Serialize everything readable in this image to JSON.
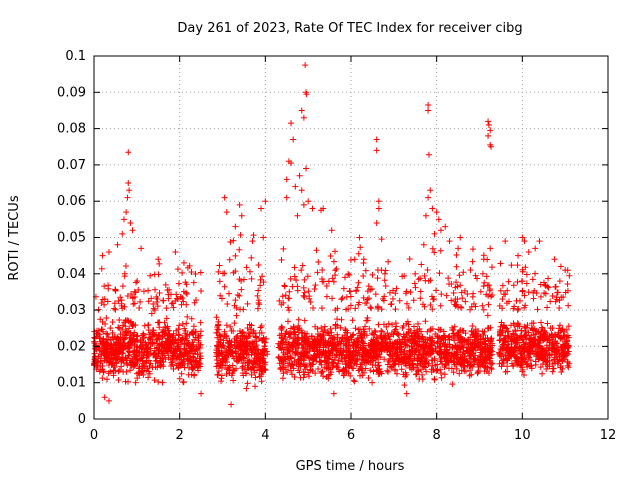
{
  "chart_data": {
    "type": "scatter",
    "title": "Day 261 of 2023, Rate Of TEC Index for receiver cibg",
    "xlabel": "GPS time / hours",
    "ylabel": "ROTI / TECUs",
    "xlim": [
      0,
      12
    ],
    "ylim": [
      0,
      0.1
    ],
    "x_ticks": [
      0,
      2,
      4,
      6,
      8,
      10,
      12
    ],
    "y_ticks": [
      0,
      0.01,
      0.02,
      0.03,
      0.04,
      0.05,
      0.06,
      0.07,
      0.08,
      0.09,
      0.1
    ],
    "x_tick_labels": [
      "0",
      "2",
      "4",
      "6",
      "8",
      "10",
      "12"
    ],
    "y_tick_labels": [
      "0",
      "0.01",
      "0.02",
      "0.03",
      "0.04",
      "0.05",
      "0.06",
      "0.07",
      "0.08",
      "0.09",
      "0.1"
    ],
    "grid": true,
    "marker": "+",
    "series": [
      {
        "name": "ROTI",
        "color": "#ff0000",
        "segments": [
          {
            "x_start": 0.0,
            "x_end": 2.5,
            "typical_min": 0.008,
            "typical_max": 0.03,
            "max_low": 0.035,
            "max_high": 0.046
          },
          {
            "x_start": 2.85,
            "x_end": 4.05,
            "typical_min": 0.007,
            "typical_max": 0.03,
            "max_low": 0.04,
            "max_high": 0.055
          },
          {
            "x_start": 4.3,
            "x_end": 9.3,
            "typical_min": 0.008,
            "typical_max": 0.03,
            "max_low": 0.035,
            "max_high": 0.05
          },
          {
            "x_start": 9.45,
            "x_end": 11.1,
            "typical_min": 0.01,
            "typical_max": 0.03,
            "max_low": 0.035,
            "max_high": 0.045
          }
        ],
        "outliers": [
          {
            "x": 0.8,
            "y": 0.0735
          },
          {
            "x": 0.8,
            "y": 0.065
          },
          {
            "x": 0.82,
            "y": 0.063
          },
          {
            "x": 0.78,
            "y": 0.061
          },
          {
            "x": 0.75,
            "y": 0.057
          },
          {
            "x": 0.7,
            "y": 0.055
          },
          {
            "x": 0.85,
            "y": 0.054
          },
          {
            "x": 0.9,
            "y": 0.052
          },
          {
            "x": 0.66,
            "y": 0.051
          },
          {
            "x": 0.55,
            "y": 0.048
          },
          {
            "x": 1.1,
            "y": 0.047
          },
          {
            "x": 0.35,
            "y": 0.046
          },
          {
            "x": 1.9,
            "y": 0.046
          },
          {
            "x": 2.1,
            "y": 0.043
          },
          {
            "x": 0.2,
            "y": 0.045
          },
          {
            "x": 1.5,
            "y": 0.044
          },
          {
            "x": 3.05,
            "y": 0.061
          },
          {
            "x": 3.4,
            "y": 0.059
          },
          {
            "x": 3.1,
            "y": 0.057
          },
          {
            "x": 3.45,
            "y": 0.056
          },
          {
            "x": 3.3,
            "y": 0.053
          },
          {
            "x": 3.9,
            "y": 0.058
          },
          {
            "x": 4.0,
            "y": 0.06
          },
          {
            "x": 3.95,
            "y": 0.05
          },
          {
            "x": 3.7,
            "y": 0.049
          },
          {
            "x": 3.2,
            "y": 0.004
          },
          {
            "x": 4.93,
            "y": 0.0975
          },
          {
            "x": 4.95,
            "y": 0.09
          },
          {
            "x": 4.96,
            "y": 0.0895
          },
          {
            "x": 4.85,
            "y": 0.085
          },
          {
            "x": 4.9,
            "y": 0.083
          },
          {
            "x": 4.6,
            "y": 0.0815
          },
          {
            "x": 4.65,
            "y": 0.077
          },
          {
            "x": 4.55,
            "y": 0.071
          },
          {
            "x": 4.6,
            "y": 0.0705
          },
          {
            "x": 4.95,
            "y": 0.069
          },
          {
            "x": 4.8,
            "y": 0.067
          },
          {
            "x": 4.5,
            "y": 0.066
          },
          {
            "x": 4.7,
            "y": 0.064
          },
          {
            "x": 4.85,
            "y": 0.063
          },
          {
            "x": 4.5,
            "y": 0.061
          },
          {
            "x": 5.0,
            "y": 0.06
          },
          {
            "x": 4.9,
            "y": 0.059
          },
          {
            "x": 5.1,
            "y": 0.058
          },
          {
            "x": 5.3,
            "y": 0.0575
          },
          {
            "x": 5.35,
            "y": 0.058
          },
          {
            "x": 4.75,
            "y": 0.056
          },
          {
            "x": 5.55,
            "y": 0.052
          },
          {
            "x": 6.6,
            "y": 0.077
          },
          {
            "x": 6.6,
            "y": 0.074
          },
          {
            "x": 6.65,
            "y": 0.06
          },
          {
            "x": 6.65,
            "y": 0.058
          },
          {
            "x": 6.2,
            "y": 0.05
          },
          {
            "x": 6.6,
            "y": 0.054
          },
          {
            "x": 6.3,
            "y": 0.044
          },
          {
            "x": 7.8,
            "y": 0.0865
          },
          {
            "x": 7.8,
            "y": 0.085
          },
          {
            "x": 7.82,
            "y": 0.0728
          },
          {
            "x": 7.85,
            "y": 0.063
          },
          {
            "x": 7.8,
            "y": 0.061
          },
          {
            "x": 7.75,
            "y": 0.056
          },
          {
            "x": 7.9,
            "y": 0.058
          },
          {
            "x": 8.0,
            "y": 0.057
          },
          {
            "x": 8.05,
            "y": 0.055
          },
          {
            "x": 8.2,
            "y": 0.053
          },
          {
            "x": 8.1,
            "y": 0.052
          },
          {
            "x": 7.95,
            "y": 0.051
          },
          {
            "x": 8.3,
            "y": 0.049
          },
          {
            "x": 8.5,
            "y": 0.047
          },
          {
            "x": 8.55,
            "y": 0.05
          },
          {
            "x": 7.7,
            "y": 0.048
          },
          {
            "x": 9.2,
            "y": 0.082
          },
          {
            "x": 9.22,
            "y": 0.081
          },
          {
            "x": 9.25,
            "y": 0.0795
          },
          {
            "x": 9.2,
            "y": 0.078
          },
          {
            "x": 9.25,
            "y": 0.0755
          },
          {
            "x": 9.27,
            "y": 0.075
          },
          {
            "x": 9.1,
            "y": 0.044
          },
          {
            "x": 9.25,
            "y": 0.047
          },
          {
            "x": 10.0,
            "y": 0.05
          },
          {
            "x": 10.05,
            "y": 0.049
          },
          {
            "x": 10.4,
            "y": 0.049
          },
          {
            "x": 9.6,
            "y": 0.049
          },
          {
            "x": 10.3,
            "y": 0.047
          },
          {
            "x": 10.15,
            "y": 0.046
          },
          {
            "x": 9.9,
            "y": 0.045
          },
          {
            "x": 10.75,
            "y": 0.044
          },
          {
            "x": 11.0,
            "y": 0.041
          },
          {
            "x": 10.9,
            "y": 0.042
          },
          {
            "x": 0.25,
            "y": 0.006
          },
          {
            "x": 0.35,
            "y": 0.005
          },
          {
            "x": 2.5,
            "y": 0.007
          },
          {
            "x": 7.3,
            "y": 0.007
          },
          {
            "x": 5.6,
            "y": 0.007
          }
        ]
      }
    ]
  }
}
